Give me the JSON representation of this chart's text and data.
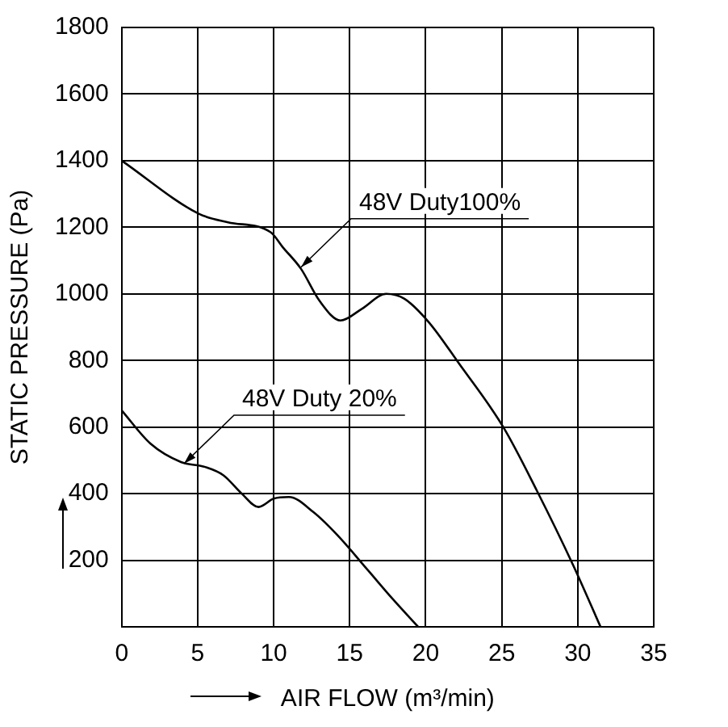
{
  "chart_data": {
    "type": "line",
    "xlabel": "AIR FLOW (m³/min)",
    "ylabel": "STATIC PRESSURE (Pa)",
    "xlim": [
      0,
      35
    ],
    "xticks": [
      0,
      5,
      10,
      15,
      20,
      25,
      30,
      35
    ],
    "ylim": [
      0,
      1800
    ],
    "yticks": [
      200,
      400,
      600,
      800,
      1000,
      1200,
      1400,
      1600,
      1800
    ],
    "grid": true,
    "legend": false,
    "marker": "none",
    "line_style": "solid",
    "series": [
      {
        "color": "#000000",
        "x": [
          0,
          5.1,
          7,
          9.8,
          10.6,
          11.8,
          13,
          14.4,
          15.8,
          17.4,
          18.6,
          20.2,
          22.2,
          25.1,
          27.3,
          29.7,
          31.5
        ],
        "values": [
          1400,
          1240,
          1215,
          1185,
          1140,
          1075,
          980,
          920,
          955,
          1000,
          985,
          915,
          790,
          600,
          410,
          185,
          0
        ]
      },
      {
        "color": "#000000",
        "x": [
          0,
          1.9,
          3.9,
          5.5,
          6.7,
          7.9,
          9,
          10,
          11,
          12.6,
          14.2,
          16.2,
          17.8,
          19.5
        ],
        "values": [
          650,
          550,
          495,
          480,
          455,
          400,
          360,
          385,
          390,
          345,
          275,
          170,
          85,
          0
        ]
      }
    ],
    "annotations": [
      {
        "text": "48V Duty100%",
        "x": 11.8,
        "y": 1080
      },
      {
        "text": "48V Duty 20%",
        "x": 4.1,
        "y": 490
      }
    ]
  }
}
